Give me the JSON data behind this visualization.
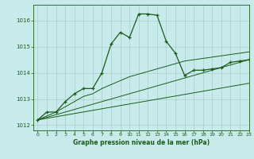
{
  "bg_color": "#c8eaea",
  "line_color": "#1a5c1a",
  "grid_color": "#a8cece",
  "xlabel": "Graphe pression niveau de la mer (hPa)",
  "ylim": [
    1011.8,
    1016.6
  ],
  "xlim": [
    -0.5,
    23
  ],
  "yticks": [
    1012,
    1013,
    1014,
    1015,
    1016
  ],
  "xticks": [
    0,
    1,
    2,
    3,
    4,
    5,
    6,
    7,
    8,
    9,
    10,
    11,
    12,
    13,
    14,
    15,
    16,
    17,
    18,
    19,
    20,
    21,
    22,
    23
  ],
  "line1_x": [
    0,
    1,
    2,
    3,
    4,
    5,
    6,
    7,
    8,
    9,
    10,
    11,
    12,
    13,
    14,
    15,
    16,
    17,
    18,
    19,
    20,
    21,
    22,
    23
  ],
  "line1_y": [
    1012.2,
    1012.5,
    1012.5,
    1012.9,
    1013.2,
    1013.4,
    1013.4,
    1014.0,
    1015.1,
    1015.55,
    1015.35,
    1016.25,
    1016.25,
    1016.2,
    1015.2,
    1014.75,
    1013.9,
    1014.1,
    1014.1,
    1014.15,
    1014.2,
    1014.4,
    1014.45,
    1014.5
  ],
  "line2_x": [
    0,
    2,
    3,
    4,
    5,
    6,
    7,
    8,
    9,
    10,
    11,
    12,
    13,
    14,
    15,
    16,
    17,
    18,
    19,
    20,
    21,
    22,
    23
  ],
  "line2_y": [
    1012.2,
    1012.5,
    1012.7,
    1012.9,
    1013.1,
    1013.2,
    1013.4,
    1013.55,
    1013.7,
    1013.85,
    1013.95,
    1014.05,
    1014.15,
    1014.25,
    1014.35,
    1014.45,
    1014.5,
    1014.55,
    1014.6,
    1014.65,
    1014.7,
    1014.75,
    1014.8
  ],
  "line3_x": [
    0,
    23
  ],
  "line3_y": [
    1012.2,
    1014.5
  ],
  "line4_x": [
    0,
    23
  ],
  "line4_y": [
    1012.2,
    1013.6
  ]
}
